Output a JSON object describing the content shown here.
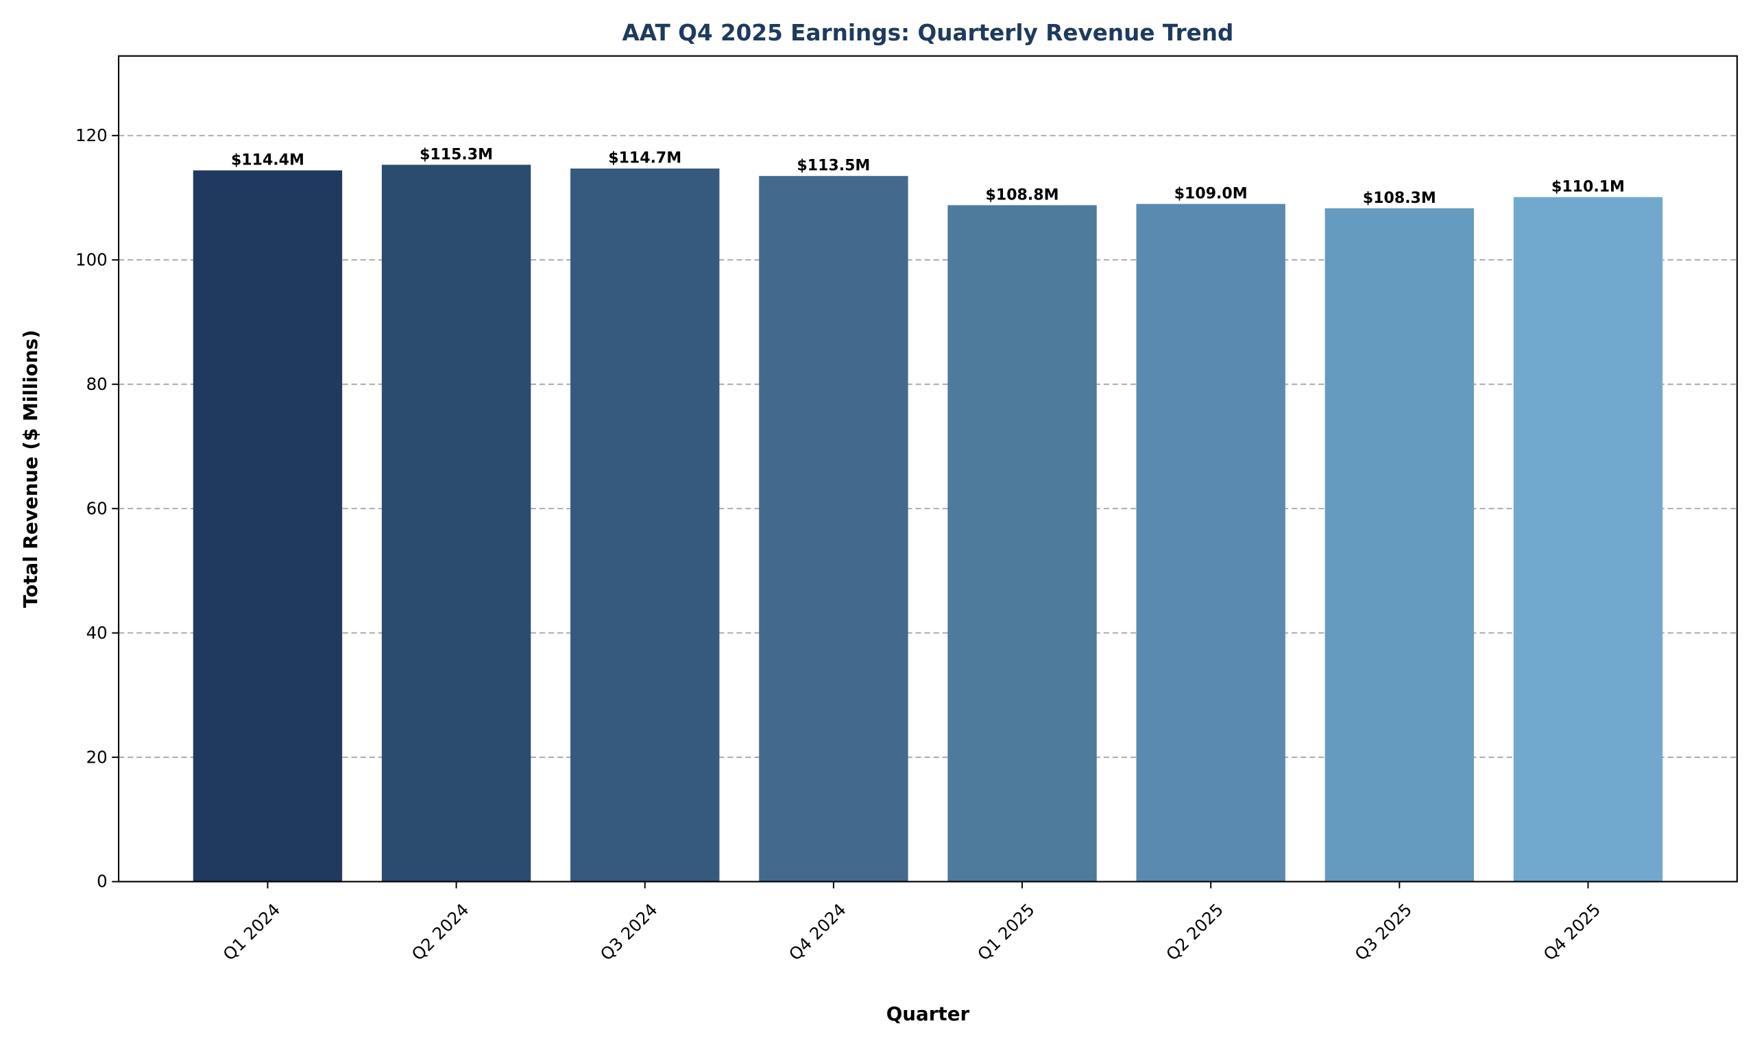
{
  "chart_data": {
    "type": "bar",
    "title": "AAT Q4 2025 Earnings: Quarterly Revenue Trend",
    "xlabel": "Quarter",
    "ylabel": "Total Revenue ($ Millions)",
    "categories": [
      "Q1 2024",
      "Q2 2024",
      "Q3 2024",
      "Q4 2024",
      "Q1 2025",
      "Q2 2025",
      "Q3 2025",
      "Q4 2025"
    ],
    "values": [
      114.4,
      115.3,
      114.7,
      113.5,
      108.8,
      109.0,
      108.3,
      110.1
    ],
    "data_labels": [
      "$114.4M",
      "$115.3M",
      "$114.7M",
      "$113.5M",
      "$108.8M",
      "$109.0M",
      "$108.3M",
      "$110.1M"
    ],
    "ylim": [
      0,
      132.8
    ],
    "yticks": [
      0,
      20,
      40,
      60,
      80,
      100,
      120
    ],
    "grid": "y-dashed",
    "colors": [
      "#1f3a5e",
      "#2b4b6f",
      "#365a7e",
      "#436a8d",
      "#4e7a9c",
      "#5a8aaf",
      "#659bbf",
      "#70a9cd"
    ],
    "title_color": "#1f3a5e"
  }
}
